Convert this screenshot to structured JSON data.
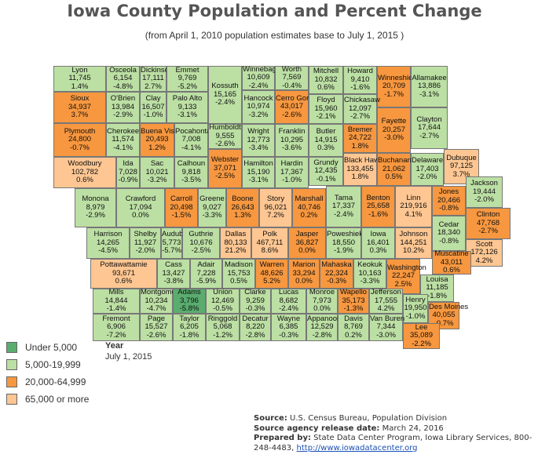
{
  "title": "Iowa County Population and Percent Change",
  "subtitle": "(from April 1, 2010 population estimates base to July 1, 2015 )",
  "colors": {
    "under_5000": "#5aad6f",
    "5000_19999": "#bcdfa4",
    "20000_64999": "#f7973f",
    "65000_plus": "#fdc692",
    "border": "#777777"
  },
  "legend": [
    {
      "label": "Under 5,000",
      "color": "#5aad6f"
    },
    {
      "label": "5,000-19,999",
      "color": "#bcdfa4"
    },
    {
      "label": "20,000-64,999",
      "color": "#f7973f"
    },
    {
      "label": "65,000 or more",
      "color": "#fdc692"
    }
  ],
  "year": {
    "label": "Year",
    "value": "July 1, 2015"
  },
  "footer": {
    "source_label": "Source:",
    "source": "U.S. Census Bureau, Population Division",
    "release_label": "Source agency release date:",
    "release": "March 24, 2016",
    "prepared_label": "Prepared by:",
    "prepared": "State Data Center Program, Iowa Library Services, 800-248-4483,",
    "link": "http://www.iowadatacenter.org"
  },
  "counties": [
    {
      "name": "Lyon",
      "pop": "11,745",
      "change": "1.4%"
    },
    {
      "name": "Osceola",
      "pop": "6,154",
      "change": "-4.8%"
    },
    {
      "name": "Dickinson",
      "pop": "17,111",
      "change": "2.7%"
    },
    {
      "name": "Emmet",
      "pop": "9,769",
      "change": "-5.2%"
    },
    {
      "name": "Kossuth",
      "pop": "15,165",
      "change": "-2.4%"
    },
    {
      "name": "Winnebago",
      "pop": "10,609",
      "change": "-2.4%"
    },
    {
      "name": "Worth",
      "pop": "7,569",
      "change": "-0.4%"
    },
    {
      "name": "Mitchell",
      "pop": "10,832",
      "change": "0.6%"
    },
    {
      "name": "Howard",
      "pop": "9,410",
      "change": "-1.6%"
    },
    {
      "name": "Winneshiek",
      "pop": "20,709",
      "change": "-1.7%"
    },
    {
      "name": "Allamakee",
      "pop": "13,886",
      "change": "-3.1%"
    },
    {
      "name": "Sioux",
      "pop": "34,937",
      "change": "3.7%"
    },
    {
      "name": "O'Brien",
      "pop": "13,984",
      "change": "-2.9%"
    },
    {
      "name": "Clay",
      "pop": "16,507",
      "change": "-1.0%"
    },
    {
      "name": "Palo Alto",
      "pop": "9,133",
      "change": "-3.1%"
    },
    {
      "name": "Hancock",
      "pop": "10,974",
      "change": "-3.2%"
    },
    {
      "name": "Cerro Gordo",
      "pop": "43,017",
      "change": "-2.6%"
    },
    {
      "name": "Floyd",
      "pop": "15,960",
      "change": "-2.1%"
    },
    {
      "name": "Chickasaw",
      "pop": "12,097",
      "change": "-2.7%"
    },
    {
      "name": "Fayette",
      "pop": "20,257",
      "change": "-3.0%"
    },
    {
      "name": "Clayton",
      "pop": "17,644",
      "change": "-2.7%"
    },
    {
      "name": "Plymouth",
      "pop": "24,800",
      "change": "-0.7%"
    },
    {
      "name": "Cherokee",
      "pop": "11,574",
      "change": "-4.1%"
    },
    {
      "name": "Buena Vista",
      "pop": "20,493",
      "change": "1.2%"
    },
    {
      "name": "Pocahontas",
      "pop": "7,008",
      "change": "-4.1%"
    },
    {
      "name": "Humboldt",
      "pop": "9,555",
      "change": "-2.6%"
    },
    {
      "name": "Wright",
      "pop": "12,773",
      "change": "-3.4%"
    },
    {
      "name": "Franklin",
      "pop": "10,295",
      "change": "-3.6%"
    },
    {
      "name": "Butler",
      "pop": "14,915",
      "change": "0.3%"
    },
    {
      "name": "Bremer",
      "pop": "24,722",
      "change": "1.8%"
    },
    {
      "name": "Woodbury",
      "pop": "102,782",
      "change": "0.6%"
    },
    {
      "name": "Ida",
      "pop": "7,028",
      "change": "-0.9%"
    },
    {
      "name": "Sac",
      "pop": "10,021",
      "change": "-3.2%"
    },
    {
      "name": "Calhoun",
      "pop": "9,818",
      "change": "-3.5%"
    },
    {
      "name": "Webster",
      "pop": "37,071",
      "change": "-2.5%"
    },
    {
      "name": "Hamilton",
      "pop": "15,190",
      "change": "-3.1%"
    },
    {
      "name": "Hardin",
      "pop": "17,367",
      "change": "-1.0%"
    },
    {
      "name": "Grundy",
      "pop": "12,435",
      "change": "-0.1%"
    },
    {
      "name": "Black Hawk",
      "pop": "133,455",
      "change": "1.8%"
    },
    {
      "name": "Buchanan",
      "pop": "21,062",
      "change": "0.5%"
    },
    {
      "name": "Delaware",
      "pop": "17,403",
      "change": "-2.0%"
    },
    {
      "name": "Dubuque",
      "pop": "97,125",
      "change": "3.7%"
    },
    {
      "name": "Monona",
      "pop": "8,979",
      "change": "-2.9%"
    },
    {
      "name": "Crawford",
      "pop": "17,094",
      "change": "0.0%"
    },
    {
      "name": "Carroll",
      "pop": "20,498",
      "change": "-1.5%"
    },
    {
      "name": "Greene",
      "pop": "9,027",
      "change": "-3.3%"
    },
    {
      "name": "Boone",
      "pop": "26,643",
      "change": "1.3%"
    },
    {
      "name": "Story",
      "pop": "96,021",
      "change": "7.2%"
    },
    {
      "name": "Marshall",
      "pop": "40,746",
      "change": "0.2%"
    },
    {
      "name": "Tama",
      "pop": "17,337",
      "change": "-2.4%"
    },
    {
      "name": "Benton",
      "pop": "25,658",
      "change": "-1.6%"
    },
    {
      "name": "Linn",
      "pop": "219,916",
      "change": "4.1%"
    },
    {
      "name": "Jones",
      "pop": "20,466",
      "change": "-0.8%"
    },
    {
      "name": "Jackson",
      "pop": "19,444",
      "change": "-2.0%"
    },
    {
      "name": "Clinton",
      "pop": "47,768",
      "change": "-2.7%"
    },
    {
      "name": "Cedar",
      "pop": "18,340",
      "change": "-0.8%"
    },
    {
      "name": "Harrison",
      "pop": "14,265",
      "change": "-4.5%"
    },
    {
      "name": "Shelby",
      "pop": "11,927",
      "change": "-2.0%"
    },
    {
      "name": "Audubon",
      "pop": "5,773",
      "change": "-5.7%"
    },
    {
      "name": "Guthrie",
      "pop": "10,676",
      "change": "-2.5%"
    },
    {
      "name": "Dallas",
      "pop": "80,133",
      "change": "21.2%"
    },
    {
      "name": "Polk",
      "pop": "467,711",
      "change": "8.6%"
    },
    {
      "name": "Jasper",
      "pop": "36,827",
      "change": "0.0%"
    },
    {
      "name": "Poweshiek",
      "pop": "18,550",
      "change": "-1.9%"
    },
    {
      "name": "Iowa",
      "pop": "16,401",
      "change": "0.3%"
    },
    {
      "name": "Johnson",
      "pop": "144,251",
      "change": "10.2%"
    },
    {
      "name": "Scott",
      "pop": "172,126",
      "change": "4.2%"
    },
    {
      "name": "Muscatine",
      "pop": "43,011",
      "change": "0.6%"
    },
    {
      "name": "Pottawattamie",
      "pop": "93,671",
      "change": "0.6%"
    },
    {
      "name": "Cass",
      "pop": "13,427",
      "change": "-3.8%"
    },
    {
      "name": "Adair",
      "pop": "7,228",
      "change": "-5.9%"
    },
    {
      "name": "Madison",
      "pop": "15,753",
      "change": "0.5%"
    },
    {
      "name": "Warren",
      "pop": "48,626",
      "change": "5.2%"
    },
    {
      "name": "Marion",
      "pop": "33,294",
      "change": "0.0%"
    },
    {
      "name": "Mahaska",
      "pop": "22,324",
      "change": "-0.3%"
    },
    {
      "name": "Keokuk",
      "pop": "10,163",
      "change": "-3.3%"
    },
    {
      "name": "Washington",
      "pop": "22,247",
      "change": "2.5%"
    },
    {
      "name": "Louisa",
      "pop": "11,185",
      "change": "-1.8%"
    },
    {
      "name": "Mills",
      "pop": "14,844",
      "change": "-1.4%"
    },
    {
      "name": "Montgomery",
      "pop": "10,234",
      "change": "-4.7%"
    },
    {
      "name": "Adams",
      "pop": "3,796",
      "change": "-5.8%"
    },
    {
      "name": "Union",
      "pop": "12,469",
      "change": "-0.5%"
    },
    {
      "name": "Clarke",
      "pop": "9,259",
      "change": "-0.3%"
    },
    {
      "name": "Lucas",
      "pop": "8,682",
      "change": "-2.4%"
    },
    {
      "name": "Monroe",
      "pop": "7,973",
      "change": "0.0%"
    },
    {
      "name": "Wapello",
      "pop": "35,173",
      "change": "-1.3%"
    },
    {
      "name": "Jefferson",
      "pop": "17,555",
      "change": "4.2%"
    },
    {
      "name": "Henry",
      "pop": "19,950",
      "change": "-1.0%"
    },
    {
      "name": "Des Moines",
      "pop": "40,055",
      "change": "-0.7%"
    },
    {
      "name": "Fremont",
      "pop": "6,906",
      "change": "-7.2%"
    },
    {
      "name": "Page",
      "pop": "15,527",
      "change": "-2.6%"
    },
    {
      "name": "Taylor",
      "pop": "6,205",
      "change": "-1.8%"
    },
    {
      "name": "Ringgold",
      "pop": "5,068",
      "change": "-1.2%"
    },
    {
      "name": "Decatur",
      "pop": "8,220",
      "change": "-2.8%"
    },
    {
      "name": "Wayne",
      "pop": "6,385",
      "change": "-0.3%"
    },
    {
      "name": "Appanoose",
      "pop": "12,529",
      "change": "-2.8%"
    },
    {
      "name": "Davis",
      "pop": "8,769",
      "change": "0.2%"
    },
    {
      "name": "Van Buren",
      "pop": "7,344",
      "change": "-3.0%"
    },
    {
      "name": "Lee",
      "pop": "35,089",
      "change": "-2.2%"
    }
  ]
}
